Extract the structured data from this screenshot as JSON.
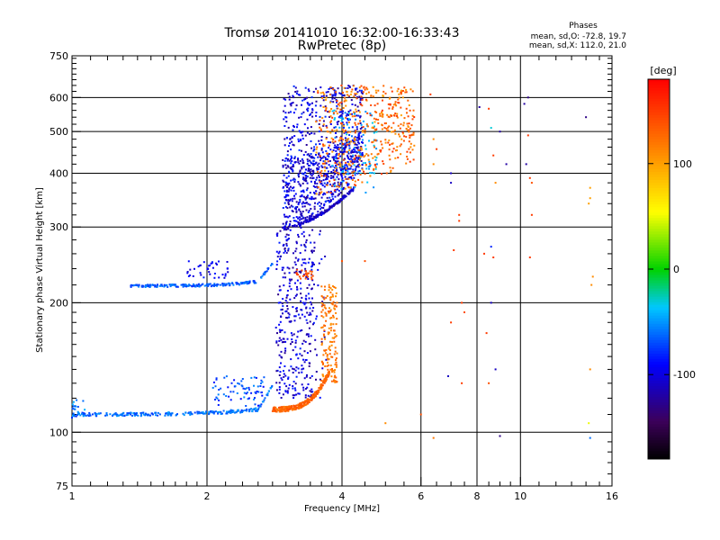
{
  "chart_data": {
    "type": "scatter",
    "title": "Tromsø 20141010 16:32:00-16:33:43",
    "subtitle": "RwPretec (8p)",
    "xlabel": "Frequency [MHz]",
    "ylabel": "Stationary phase Virtual Height [km]",
    "x_scale": "log",
    "y_scale": "log",
    "xlim": [
      1,
      16
    ],
    "ylim": [
      75,
      750
    ],
    "x_ticks": [
      1,
      2,
      4,
      6,
      8,
      10,
      16
    ],
    "x_tick_labels": [
      "1",
      "2",
      "4",
      "6",
      "8",
      "10",
      "16"
    ],
    "x_grid": [
      2,
      4,
      6,
      8,
      10
    ],
    "y_ticks": [
      75,
      100,
      200,
      300,
      400,
      500,
      600,
      750
    ],
    "y_tick_labels": [
      "75",
      "100",
      "200",
      "300",
      "400",
      "500",
      "600",
      "750"
    ],
    "y_grid": [
      100,
      200,
      300,
      400,
      500,
      600
    ],
    "grid": true,
    "annotation": {
      "heading": "Phases",
      "line1": "mean, sd,O: -72.8, 19.7",
      "line2": "mean, sd,X: 112.0, 21.0"
    },
    "colorbar": {
      "label": "[deg]",
      "min": -180,
      "max": 180,
      "ticks": [
        100,
        0,
        -100
      ],
      "tick_labels": [
        "100",
        "0",
        "-100"
      ],
      "colormap": "rainbow"
    },
    "series": [
      {
        "mode": "O",
        "x_range": [
          1.0,
          2.85
        ],
        "y_range": [
          108,
          125
        ],
        "phase": -60
      },
      {
        "mode": "O",
        "x_range": [
          1.3,
          2.85
        ],
        "y_range": [
          218,
          250
        ],
        "phase": -65
      },
      {
        "mode": "O",
        "x_range": [
          2.85,
          3.6
        ],
        "y_range": [
          120,
          300
        ],
        "phase": -110
      },
      {
        "mode": "O",
        "x_range": [
          2.95,
          4.4
        ],
        "y_range": [
          300,
          640
        ],
        "phase": -105
      },
      {
        "mode": "X",
        "x_range": [
          2.8,
          3.9
        ],
        "y_range": [
          113,
          230
        ],
        "phase": 130
      },
      {
        "mode": "X",
        "x_range": [
          3.5,
          5.8
        ],
        "y_range": [
          320,
          640
        ],
        "phase": 125
      },
      {
        "mode": "scattered",
        "x_range": [
          6.0,
          15.0
        ],
        "y_range": [
          95,
          600
        ],
        "phase": 140
      }
    ]
  }
}
